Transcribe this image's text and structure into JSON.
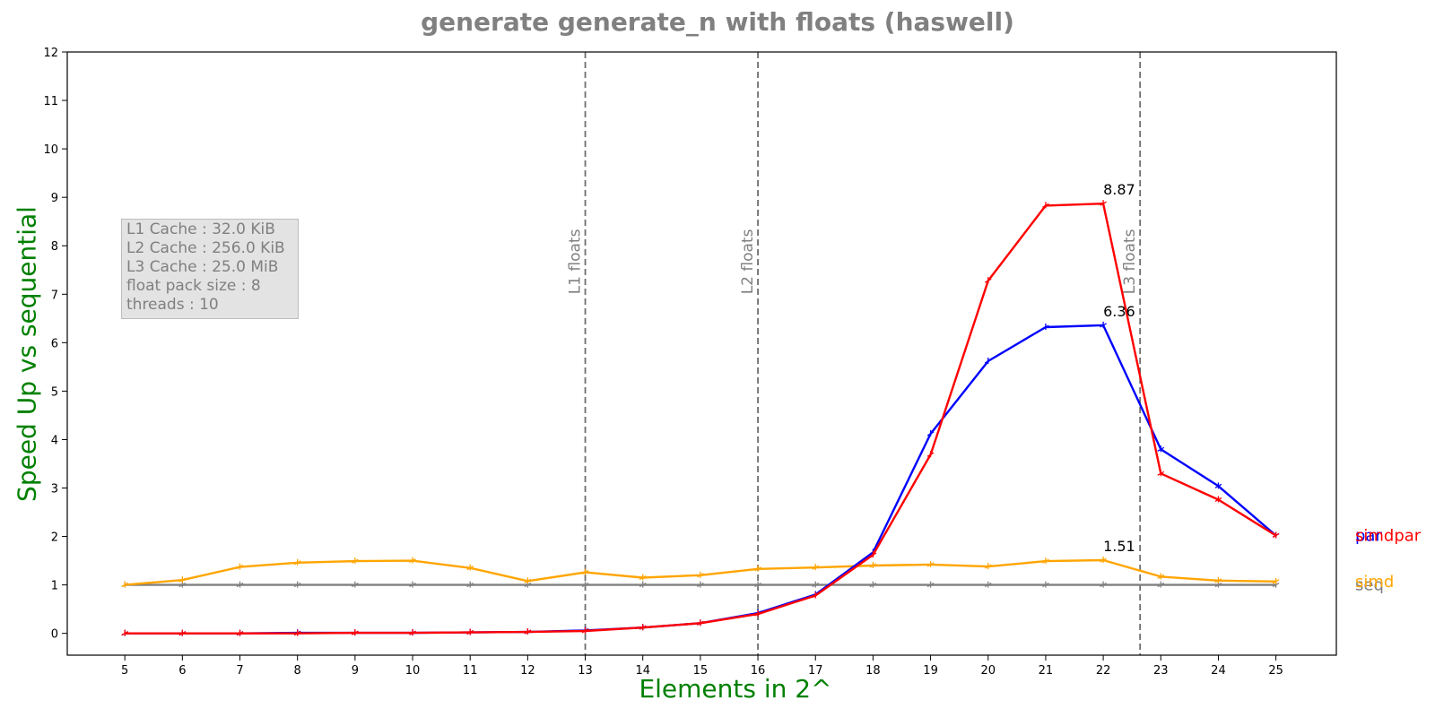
{
  "chart_data": {
    "type": "line",
    "title": "generate generate_n with floats  (haswell)",
    "xlabel": "Elements in 2^",
    "ylabel": "Speed Up vs sequential",
    "x": [
      5,
      6,
      7,
      8,
      9,
      10,
      11,
      12,
      13,
      14,
      15,
      16,
      17,
      18,
      19,
      20,
      21,
      22,
      23,
      24,
      25
    ],
    "xlim": [
      4,
      26.05
    ],
    "ylim": [
      -0.45,
      12
    ],
    "x_ticks": [
      5,
      6,
      7,
      8,
      9,
      10,
      11,
      12,
      13,
      14,
      15,
      16,
      17,
      18,
      19,
      20,
      21,
      22,
      23,
      24,
      25
    ],
    "y_ticks": [
      0,
      1,
      2,
      3,
      4,
      5,
      6,
      7,
      8,
      9,
      10,
      11,
      12
    ],
    "grid": false,
    "series": [
      {
        "name": "seq",
        "color": "#808080",
        "values": [
          1,
          1,
          1,
          1,
          1,
          1,
          1,
          1,
          1,
          1,
          1,
          1,
          1,
          1,
          1,
          1,
          1,
          1,
          1,
          1,
          1
        ]
      },
      {
        "name": "simd",
        "color": "#ffa500",
        "values": [
          1.0,
          1.1,
          1.37,
          1.46,
          1.49,
          1.5,
          1.35,
          1.08,
          1.26,
          1.15,
          1.2,
          1.33,
          1.36,
          1.4,
          1.42,
          1.38,
          1.49,
          1.51,
          1.17,
          1.09,
          1.07
        ]
      },
      {
        "name": "par",
        "color": "#0000ff",
        "values": [
          0.0,
          0.0,
          0.0,
          0.01,
          0.01,
          0.01,
          0.02,
          0.03,
          0.06,
          0.12,
          0.21,
          0.42,
          0.8,
          1.67,
          4.12,
          5.62,
          6.32,
          6.36,
          3.8,
          3.04,
          2.02
        ]
      },
      {
        "name": "simdpar",
        "color": "#ff0000",
        "values": [
          0.0,
          0.0,
          0.0,
          0.0,
          0.01,
          0.01,
          0.02,
          0.03,
          0.05,
          0.12,
          0.21,
          0.4,
          0.78,
          1.62,
          3.69,
          7.28,
          8.83,
          8.87,
          3.3,
          2.76,
          2.02
        ]
      }
    ],
    "vlines": [
      {
        "x": 13,
        "label": "L1 floats"
      },
      {
        "x": 16,
        "label": "L2 floats"
      },
      {
        "x": 22.64,
        "label": "L3 floats"
      }
    ],
    "annotations": [
      {
        "x": 22,
        "y": 8.87,
        "text": "8.87"
      },
      {
        "x": 22,
        "y": 6.36,
        "text": "6.36"
      },
      {
        "x": 22,
        "y": 1.51,
        "text": "1.51"
      }
    ],
    "legend_placement": "right, at end of each line"
  },
  "info_box": {
    "lines": [
      "L1 Cache : 32.0 KiB",
      "L2 Cache : 256.0 KiB",
      "L3 Cache : 25.0 MiB",
      "float pack size : 8",
      "threads : 10"
    ]
  }
}
